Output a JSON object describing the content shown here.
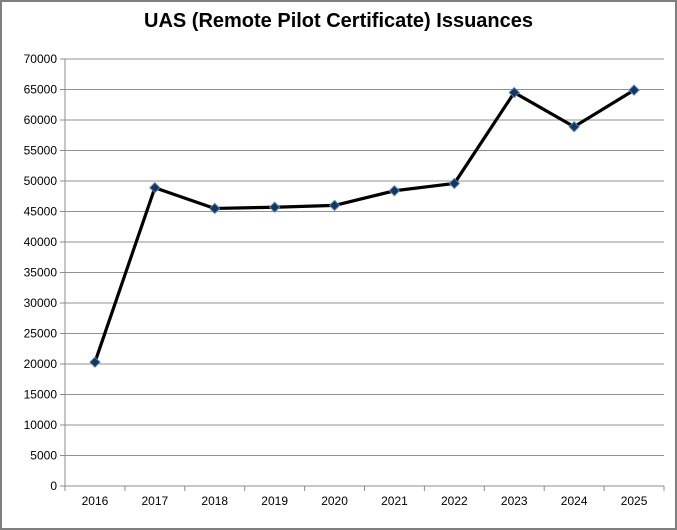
{
  "chart_data": {
    "type": "line",
    "title": "UAS (Remote Pilot Certificate) Issuances",
    "categories": [
      "2016",
      "2017",
      "2018",
      "2019",
      "2020",
      "2021",
      "2022",
      "2023",
      "2024",
      "2025"
    ],
    "series": [
      {
        "name": "UAS (Remote Pilot Certificate) Issuances",
        "values": [
          20300,
          48900,
          45500,
          45700,
          46000,
          48400,
          49600,
          64500,
          58900,
          64900
        ]
      }
    ],
    "xlabel": "",
    "ylabel": "",
    "ylim": [
      0,
      70000
    ],
    "y_ticks": [
      0,
      5000,
      10000,
      15000,
      20000,
      25000,
      30000,
      35000,
      40000,
      45000,
      50000,
      55000,
      60000,
      65000,
      70000
    ],
    "grid": true,
    "legend_position": "none",
    "marker": "diamond",
    "colors": {
      "line": "#000000",
      "marker_fill": "#16365c",
      "marker_stroke": "#4f81bd",
      "gridline": "#919191",
      "axis": "#8c8c8c",
      "text": "#000000",
      "frame_border": "#7f7f7f",
      "background": "#ffffff"
    }
  }
}
